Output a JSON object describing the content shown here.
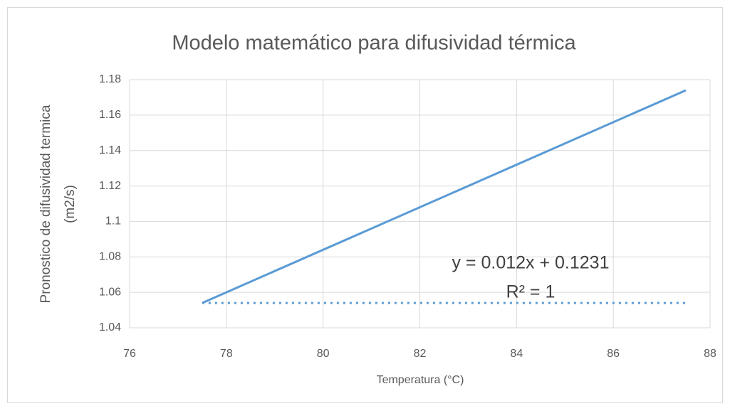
{
  "chart_data": {
    "type": "line",
    "title": "Modelo matemático para difusividad térmica",
    "xlabel": "Temperatura (°C)",
    "ylabel": [
      "Pronostico de difusividad termica",
      "(m2/s)"
    ],
    "x": [
      77.5,
      87.5
    ],
    "series": [
      {
        "color": "#5b9bd5",
        "style": "solid",
        "values": [
          1.054,
          1.174
        ]
      },
      {
        "color": "#5b9bd5",
        "style": "dotted",
        "values": [
          1.054,
          1.054
        ]
      }
    ],
    "annotations": [
      "y = 0.012x + 0.1231",
      "R² = 1"
    ],
    "xlim": [
      76,
      88
    ],
    "xticks": [
      76,
      78,
      80,
      82,
      84,
      86,
      88
    ],
    "ylim": [
      1.04,
      1.18
    ],
    "yticks": [
      1.04,
      1.06,
      1.08,
      1.1,
      1.12,
      1.14,
      1.16,
      1.18
    ],
    "grid": true
  }
}
